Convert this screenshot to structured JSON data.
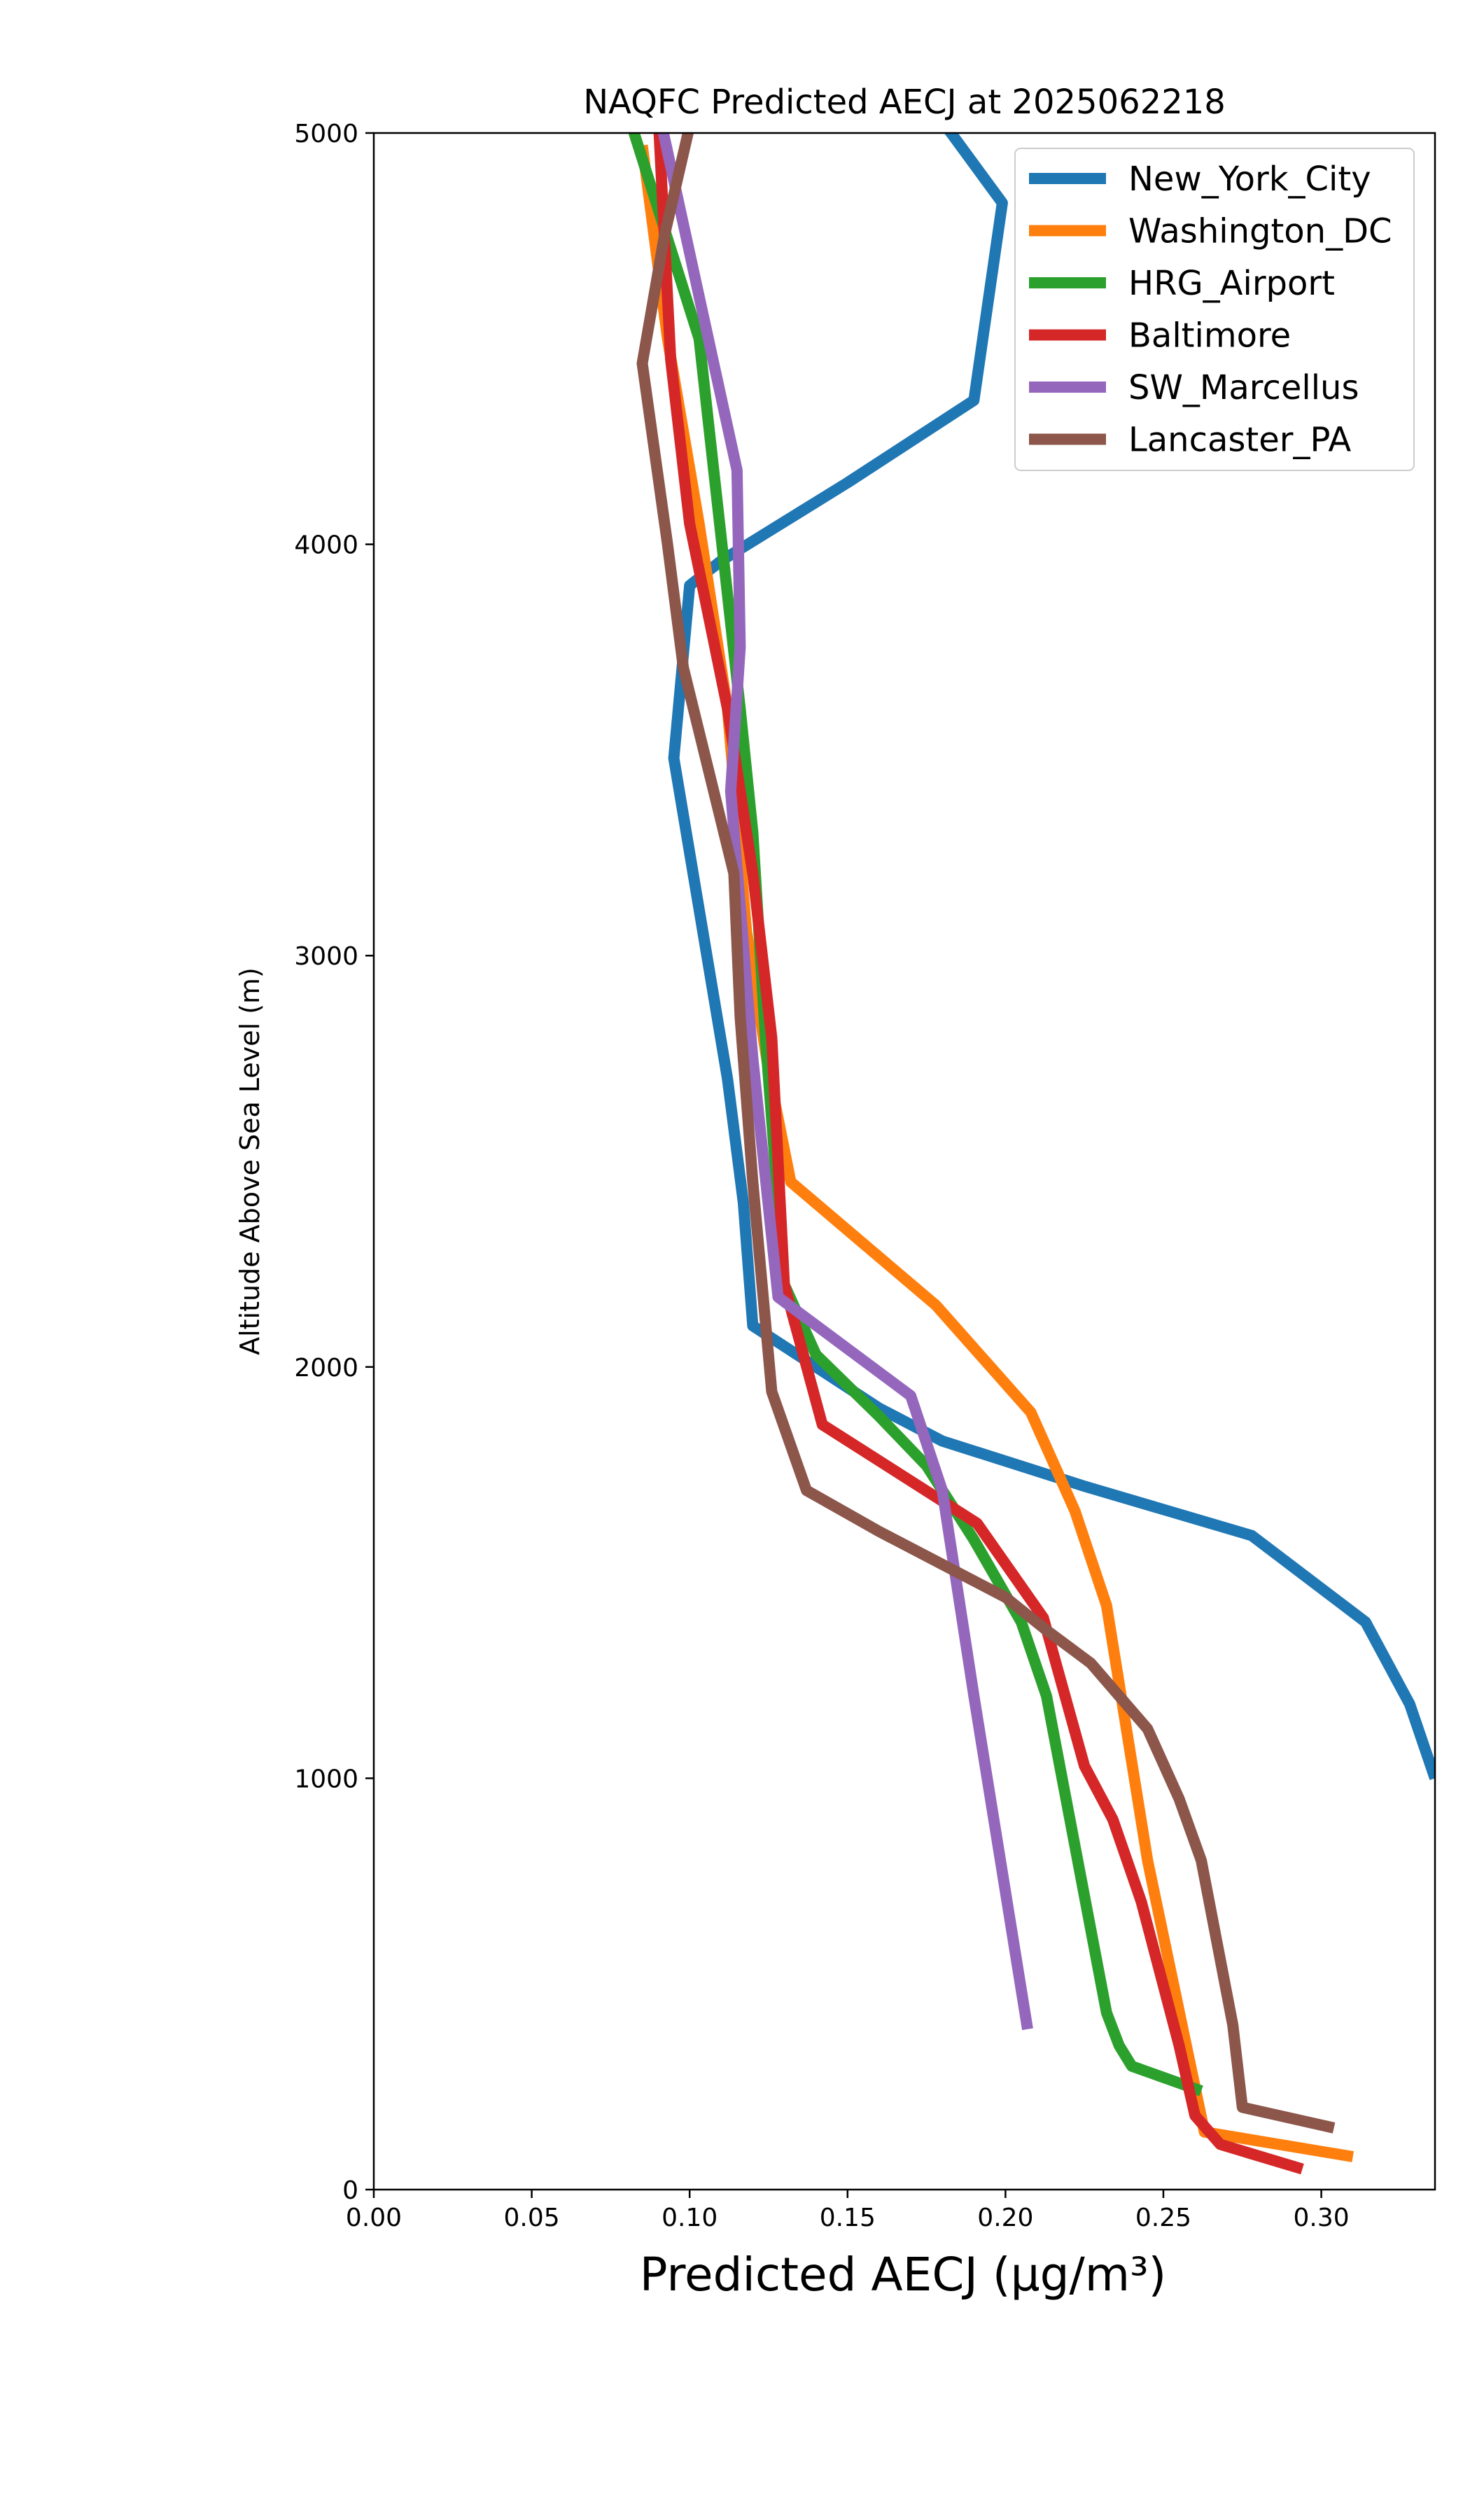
{
  "chart_data": {
    "type": "line",
    "title": "NAQFC Predicted AECJ at 2025062218",
    "xlabel": "Predicted AECJ (μg/m³)",
    "ylabel": "Altitude Above Sea Level (m)",
    "xlim": [
      0.0,
      0.336
    ],
    "ylim": [
      0,
      5000
    ],
    "xticks": [
      "0.00",
      "0.05",
      "0.10",
      "0.15",
      "0.20",
      "0.25",
      "0.30"
    ],
    "yticks": [
      "0",
      "1000",
      "2000",
      "3000",
      "4000",
      "5000"
    ],
    "grid": false,
    "legend_position": "upper-right",
    "series": [
      {
        "name": "New_York_City",
        "color": "#1f77b4",
        "points": [
          [
            0.336,
            1000
          ],
          [
            0.328,
            1180
          ],
          [
            0.314,
            1380
          ],
          [
            0.278,
            1590
          ],
          [
            0.225,
            1710
          ],
          [
            0.18,
            1820
          ],
          [
            0.16,
            1900
          ],
          [
            0.14,
            2000
          ],
          [
            0.12,
            2100
          ],
          [
            0.117,
            2400
          ],
          [
            0.112,
            2700
          ],
          [
            0.095,
            3480
          ],
          [
            0.1,
            3900
          ],
          [
            0.11,
            3960
          ],
          [
            0.15,
            4150
          ],
          [
            0.19,
            4350
          ],
          [
            0.199,
            4830
          ],
          [
            0.178,
            5050
          ]
        ]
      },
      {
        "name": "Washington_DC",
        "color": "#ff7f0e",
        "points": [
          [
            0.31,
            80
          ],
          [
            0.263,
            140
          ],
          [
            0.245,
            800
          ],
          [
            0.232,
            1420
          ],
          [
            0.222,
            1650
          ],
          [
            0.208,
            1890
          ],
          [
            0.178,
            2150
          ],
          [
            0.132,
            2450
          ],
          [
            0.125,
            2720
          ],
          [
            0.118,
            3060
          ],
          [
            0.112,
            3600
          ],
          [
            0.103,
            4050
          ],
          [
            0.093,
            4500
          ],
          [
            0.085,
            4970
          ]
        ]
      },
      {
        "name": "HRG_Airport",
        "color": "#2ca02c",
        "points": [
          [
            0.262,
            240
          ],
          [
            0.24,
            300
          ],
          [
            0.236,
            350
          ],
          [
            0.232,
            430
          ],
          [
            0.213,
            1200
          ],
          [
            0.205,
            1380
          ],
          [
            0.19,
            1580
          ],
          [
            0.175,
            1760
          ],
          [
            0.16,
            1880
          ],
          [
            0.14,
            2030
          ],
          [
            0.13,
            2200
          ],
          [
            0.124,
            2800
          ],
          [
            0.12,
            3300
          ],
          [
            0.116,
            3600
          ],
          [
            0.103,
            4500
          ],
          [
            0.082,
            5010
          ]
        ]
      },
      {
        "name": "Baltimore",
        "color": "#d62728",
        "points": [
          [
            0.294,
            50
          ],
          [
            0.268,
            110
          ],
          [
            0.26,
            180
          ],
          [
            0.255,
            350
          ],
          [
            0.243,
            700
          ],
          [
            0.234,
            900
          ],
          [
            0.225,
            1030
          ],
          [
            0.212,
            1390
          ],
          [
            0.191,
            1620
          ],
          [
            0.142,
            1860
          ],
          [
            0.13,
            2200
          ],
          [
            0.126,
            2800
          ],
          [
            0.12,
            3200
          ],
          [
            0.112,
            3600
          ],
          [
            0.1,
            4050
          ],
          [
            0.094,
            4450
          ],
          [
            0.09,
            5050
          ]
        ]
      },
      {
        "name": "SW_Marcellus",
        "color": "#9467bd",
        "points": [
          [
            0.207,
            390
          ],
          [
            0.19,
            1200
          ],
          [
            0.18,
            1700
          ],
          [
            0.17,
            1930
          ],
          [
            0.128,
            2170
          ],
          [
            0.12,
            2750
          ],
          [
            0.113,
            3400
          ],
          [
            0.116,
            3750
          ],
          [
            0.115,
            4180
          ],
          [
            0.09,
            5060
          ]
        ]
      },
      {
        "name": "Lancaster_PA",
        "color": "#8c564b",
        "points": [
          [
            0.304,
            150
          ],
          [
            0.275,
            200
          ],
          [
            0.272,
            400
          ],
          [
            0.262,
            800
          ],
          [
            0.255,
            950
          ],
          [
            0.245,
            1120
          ],
          [
            0.227,
            1280
          ],
          [
            0.213,
            1360
          ],
          [
            0.2,
            1440
          ],
          [
            0.185,
            1500
          ],
          [
            0.16,
            1600
          ],
          [
            0.137,
            1700
          ],
          [
            0.126,
            1940
          ],
          [
            0.12,
            2450
          ],
          [
            0.116,
            2850
          ],
          [
            0.114,
            3200
          ],
          [
            0.098,
            3700
          ],
          [
            0.093,
            4000
          ],
          [
            0.085,
            4440
          ],
          [
            0.092,
            4750
          ],
          [
            0.101,
            5050
          ]
        ]
      }
    ]
  }
}
